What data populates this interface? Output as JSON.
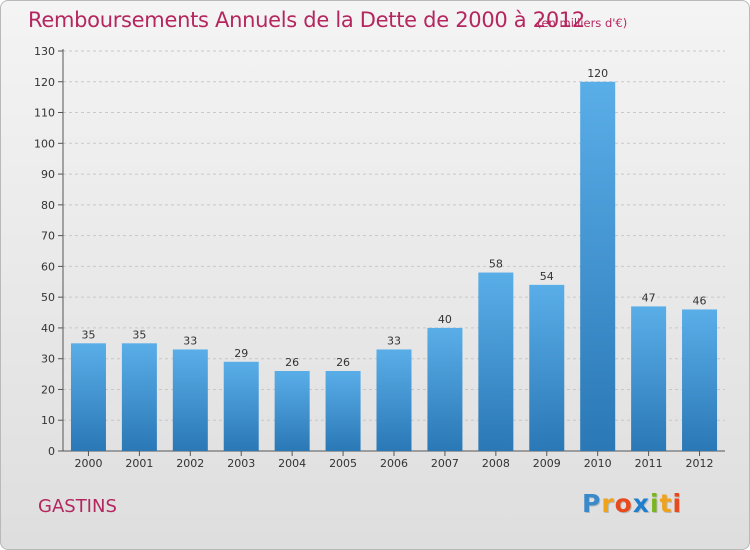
{
  "title": "Remboursements Annuels de la Dette de 2000 à 2012",
  "subtitle": "(en milliers d'€)",
  "commune": "GASTINS",
  "logo": {
    "letters": [
      "P",
      "r",
      "o",
      "x",
      "i",
      "t",
      "i"
    ],
    "colors": [
      "#3a89c9",
      "#f0a21b",
      "#e84a1e",
      "#1f7fcf",
      "#7ab51d",
      "#f0a21b",
      "#e84a1e"
    ]
  },
  "colors": {
    "bar_light": "#5aaee8",
    "bar_dark": "#2a78b6",
    "title": "#b5265f",
    "grid": "#c8c8c8"
  },
  "chart_data": {
    "type": "bar",
    "categories": [
      "2000",
      "2001",
      "2002",
      "2003",
      "2004",
      "2005",
      "2006",
      "2007",
      "2008",
      "2009",
      "2010",
      "2011",
      "2012"
    ],
    "values": [
      35,
      35,
      33,
      29,
      26,
      26,
      33,
      40,
      58,
      54,
      120,
      47,
      46
    ],
    "data_labels": [
      "35",
      "35",
      "33",
      "29",
      "26",
      "26",
      "33",
      "40",
      "58",
      "54",
      "120",
      "47",
      "46"
    ],
    "yticks": [
      0,
      10,
      20,
      30,
      40,
      50,
      60,
      70,
      80,
      90,
      100,
      110,
      120,
      130
    ],
    "ylim": [
      0,
      130
    ],
    "grid": true
  }
}
